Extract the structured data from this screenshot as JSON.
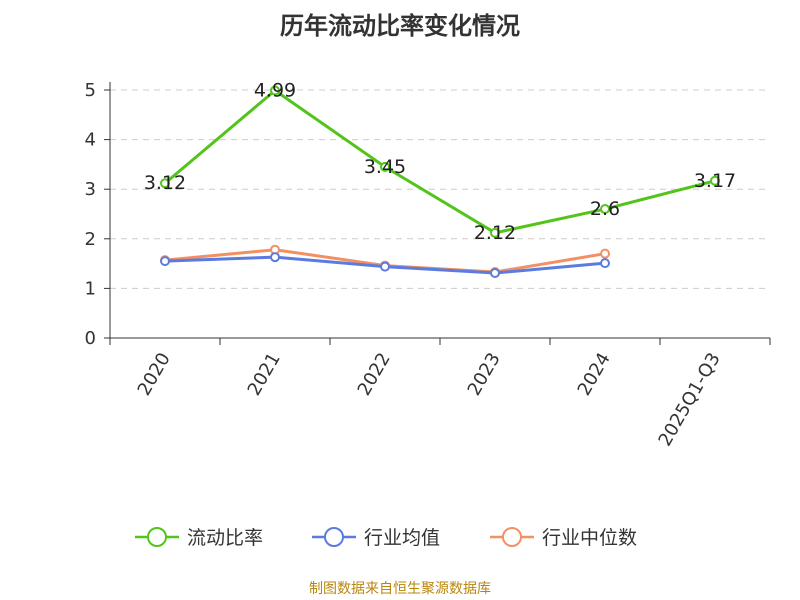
{
  "chart_data": {
    "type": "line",
    "title": "历年流动比率变化情况",
    "categories": [
      "2020",
      "2021",
      "2022",
      "2023",
      "2024",
      "2025Q1-Q3"
    ],
    "ylim": [
      0,
      5
    ],
    "yticks": [
      "0",
      "1",
      "2",
      "3",
      "4",
      "5"
    ],
    "grid": true,
    "legend_position": "bottom",
    "series": [
      {
        "name": "流动比率",
        "color": "#52c41a",
        "values": [
          3.12,
          4.99,
          3.45,
          2.12,
          2.6,
          3.17
        ],
        "labels": [
          "3.12",
          "4.99",
          "3.45",
          "2.12",
          "2.6",
          "3.17"
        ]
      },
      {
        "name": "行业均值",
        "color": "#5b7be0",
        "values": [
          1.55,
          1.63,
          1.44,
          1.31,
          1.51,
          null
        ]
      },
      {
        "name": "行业中位数",
        "color": "#f39063",
        "values": [
          1.57,
          1.78,
          1.46,
          1.33,
          1.7,
          null
        ]
      }
    ],
    "source": "制图数据来自恒生聚源数据库"
  }
}
